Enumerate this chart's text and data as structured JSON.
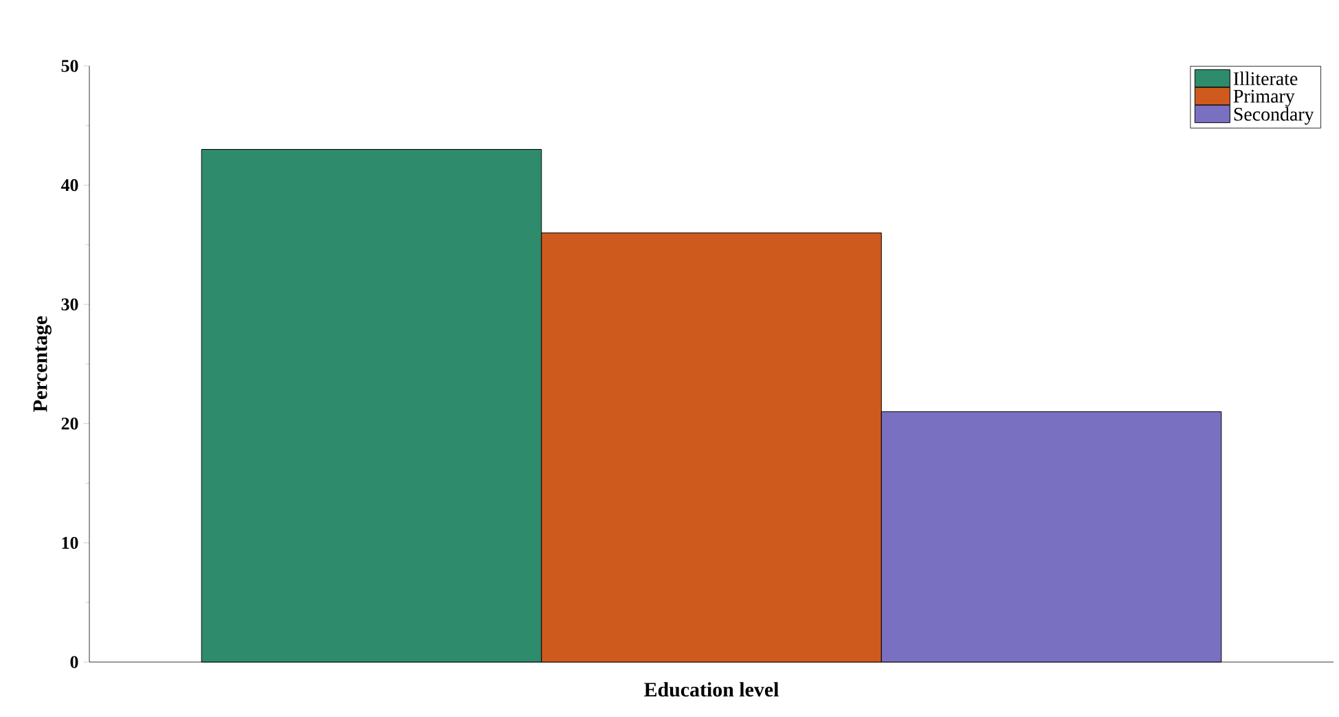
{
  "chart_data": {
    "type": "bar",
    "xlabel": "Education level",
    "ylabel": "Percentage",
    "categories": [
      null
    ],
    "series": [
      {
        "name": "Illiterate",
        "color": "#2e8b6b",
        "values": [
          43
        ]
      },
      {
        "name": "Primary",
        "color": "#cf5a1e",
        "values": [
          36
        ]
      },
      {
        "name": "Secondary",
        "color": "#7a70c2",
        "values": [
          21
        ]
      }
    ],
    "ylim": [
      0,
      50
    ],
    "yticks": [
      0,
      10,
      20,
      30,
      40,
      50
    ],
    "legend": "top right"
  }
}
